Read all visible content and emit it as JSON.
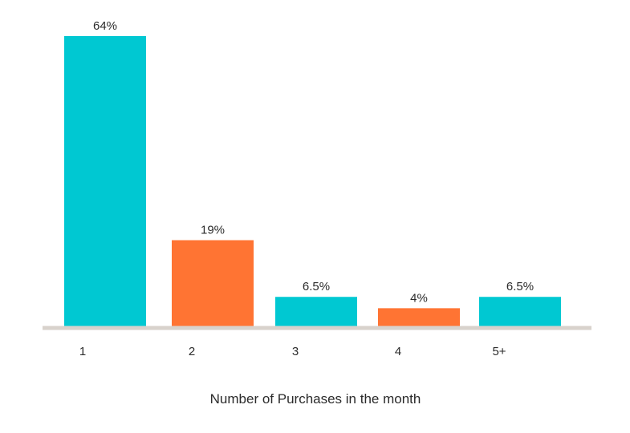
{
  "chart_data": {
    "type": "bar",
    "categories": [
      "1",
      "2",
      "3",
      "4",
      "5+"
    ],
    "values": [
      64,
      19,
      6.5,
      4,
      6.5
    ],
    "value_labels": [
      "64%",
      "19%",
      "6.5%",
      "4%",
      "6.5%"
    ],
    "bar_colors": [
      "#00C8D2",
      "#FF7433",
      "#00C8D2",
      "#FF7433",
      "#00C8D2"
    ],
    "title": "",
    "xlabel": "Number of Purchases in the month",
    "ylabel": "",
    "ylim": [
      0,
      64
    ],
    "grid": false,
    "legend": "none",
    "baseline_color": "#D8D2CC"
  }
}
